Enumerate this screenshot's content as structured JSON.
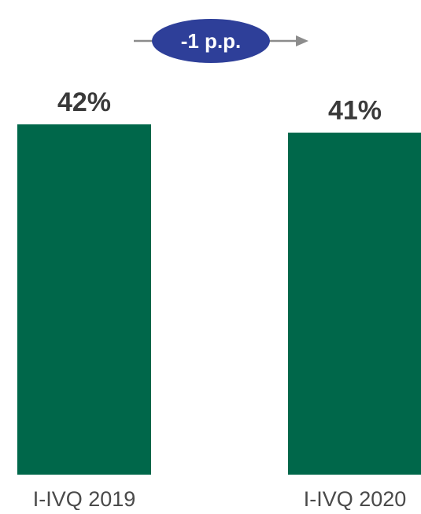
{
  "chart_data": {
    "type": "bar",
    "categories": [
      "I-IVQ 2019",
      "I-IVQ 2020"
    ],
    "values": [
      42,
      41
    ],
    "value_labels": [
      "42%",
      "41%"
    ],
    "ylim": [
      0,
      42
    ],
    "title": "",
    "xlabel": "",
    "ylabel": "",
    "grid": false,
    "bar_color": "#00674a",
    "change_badge": {
      "label": "-1 p.p.",
      "fill_color": "#2e3f99",
      "arrow_color": "#8c8c8c"
    }
  }
}
